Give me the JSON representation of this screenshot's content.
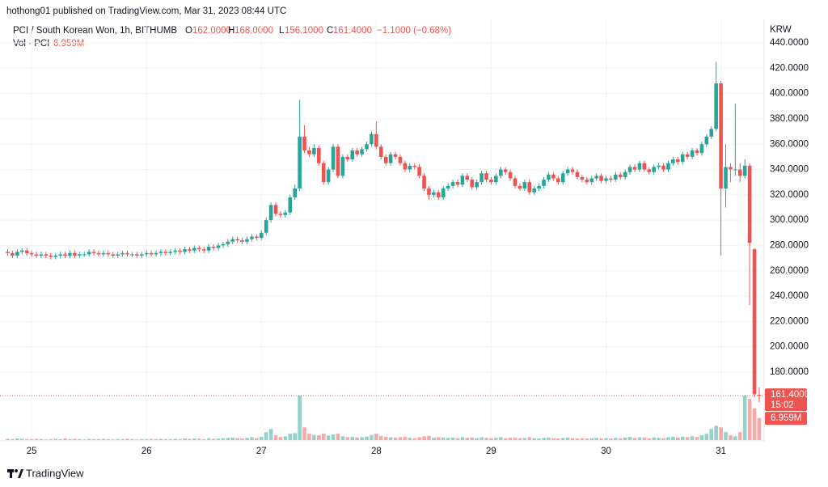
{
  "header": {
    "publisher": "hothong01 published on TradingView.com, Mar 31, 2023 08:44 UTC",
    "symbol": "PCI / South Korean Won, 1h, BITHUMB",
    "ohlc_names": [
      "O",
      "H",
      "L",
      "C"
    ],
    "change": "−1.1000 (−0.68%)",
    "volume_title": "Vol · PCI"
  },
  "chart_data": {
    "type": "candlestick",
    "categories": [
      null,
      null,
      null,
      null,
      null,
      "25",
      null,
      null,
      null,
      null,
      null,
      null,
      null,
      null,
      null,
      null,
      null,
      null,
      null,
      null,
      null,
      null,
      null,
      null,
      null,
      null,
      null,
      null,
      null,
      "26",
      null,
      null,
      null,
      null,
      null,
      null,
      null,
      null,
      null,
      null,
      null,
      null,
      null,
      null,
      null,
      null,
      null,
      null,
      null,
      null,
      null,
      null,
      null,
      "27",
      null,
      null,
      null,
      null,
      null,
      null,
      null,
      null,
      null,
      null,
      null,
      null,
      null,
      null,
      null,
      null,
      null,
      null,
      null,
      null,
      null,
      null,
      null,
      "28",
      null,
      null,
      null,
      null,
      null,
      null,
      null,
      null,
      null,
      null,
      null,
      null,
      null,
      null,
      null,
      null,
      null,
      null,
      null,
      null,
      null,
      null,
      null,
      "29",
      null,
      null,
      null,
      null,
      null,
      null,
      null,
      null,
      null,
      null,
      null,
      null,
      null,
      null,
      null,
      null,
      null,
      null,
      null,
      null,
      null,
      null,
      null,
      "30",
      null,
      null,
      null,
      null,
      null,
      null,
      null,
      null,
      null,
      null,
      null,
      null,
      null,
      null,
      null,
      null,
      null,
      null,
      null,
      null,
      null,
      null,
      null,
      "31",
      null,
      null,
      null,
      null,
      null,
      null,
      null,
      null
    ],
    "ohlc": [
      [
        275,
        277,
        272,
        274
      ],
      [
        274,
        276,
        270,
        272
      ],
      [
        272,
        277,
        270,
        275
      ],
      [
        275,
        278,
        273,
        276
      ],
      [
        276,
        278,
        272,
        274
      ],
      [
        274,
        276,
        271,
        273
      ],
      [
        273,
        275,
        270,
        272
      ],
      [
        272,
        275,
        270,
        273
      ],
      [
        273,
        275,
        270,
        272
      ],
      [
        272,
        274,
        269,
        271
      ],
      [
        271,
        274,
        269,
        272
      ],
      [
        272,
        275,
        270,
        273
      ],
      [
        273,
        275,
        270,
        272
      ],
      [
        272,
        276,
        270,
        274
      ],
      [
        274,
        276,
        270,
        272
      ],
      [
        272,
        275,
        270,
        273
      ],
      [
        273,
        275,
        271,
        273
      ],
      [
        273,
        277,
        271,
        275
      ],
      [
        275,
        277,
        272,
        274
      ],
      [
        274,
        276,
        271,
        273
      ],
      [
        273,
        276,
        271,
        274
      ],
      [
        274,
        276,
        271,
        273
      ],
      [
        273,
        275,
        270,
        272
      ],
      [
        272,
        275,
        270,
        273
      ],
      [
        273,
        276,
        271,
        274
      ],
      [
        274,
        276,
        271,
        273
      ],
      [
        273,
        275,
        271,
        273
      ],
      [
        273,
        275,
        270,
        272
      ],
      [
        272,
        275,
        270,
        273
      ],
      [
        273,
        276,
        271,
        274
      ],
      [
        274,
        276,
        271,
        273
      ],
      [
        273,
        276,
        271,
        274
      ],
      [
        274,
        277,
        272,
        275
      ],
      [
        275,
        277,
        272,
        274
      ],
      [
        274,
        277,
        272,
        275
      ],
      [
        275,
        278,
        273,
        276
      ],
      [
        276,
        278,
        273,
        275
      ],
      [
        275,
        279,
        273,
        277
      ],
      [
        277,
        279,
        274,
        276
      ],
      [
        276,
        280,
        274,
        278
      ],
      [
        278,
        280,
        275,
        277
      ],
      [
        277,
        279,
        274,
        276
      ],
      [
        276,
        281,
        274,
        279
      ],
      [
        279,
        281,
        276,
        278
      ],
      [
        278,
        282,
        276,
        280
      ],
      [
        280,
        283,
        278,
        281
      ],
      [
        281,
        285,
        279,
        283
      ],
      [
        283,
        287,
        281,
        285
      ],
      [
        285,
        287,
        282,
        284
      ],
      [
        284,
        286,
        281,
        283
      ],
      [
        283,
        287,
        281,
        285
      ],
      [
        285,
        289,
        283,
        287
      ],
      [
        287,
        289,
        284,
        286
      ],
      [
        286,
        292,
        284,
        290
      ],
      [
        290,
        302,
        288,
        300
      ],
      [
        300,
        314,
        298,
        312
      ],
      [
        312,
        314,
        303,
        305
      ],
      [
        305,
        307,
        302,
        304
      ],
      [
        304,
        308,
        302,
        306
      ],
      [
        306,
        320,
        304,
        318
      ],
      [
        318,
        328,
        316,
        325
      ],
      [
        325,
        395,
        323,
        366
      ],
      [
        366,
        375,
        353,
        355
      ],
      [
        355,
        358,
        350,
        352
      ],
      [
        352,
        360,
        350,
        357
      ],
      [
        357,
        359,
        343,
        345
      ],
      [
        345,
        347,
        328,
        330
      ],
      [
        330,
        342,
        328,
        340
      ],
      [
        340,
        360,
        338,
        358
      ],
      [
        358,
        360,
        333,
        335
      ],
      [
        335,
        352,
        333,
        350
      ],
      [
        350,
        352,
        346,
        348
      ],
      [
        348,
        357,
        346,
        355
      ],
      [
        355,
        357,
        350,
        352
      ],
      [
        352,
        358,
        350,
        356
      ],
      [
        356,
        362,
        354,
        360
      ],
      [
        360,
        370,
        358,
        368
      ],
      [
        368,
        378,
        356,
        358
      ],
      [
        358,
        360,
        348,
        350
      ],
      [
        350,
        352,
        343,
        345
      ],
      [
        345,
        354,
        343,
        352
      ],
      [
        352,
        354,
        348,
        350
      ],
      [
        350,
        352,
        343,
        345
      ],
      [
        345,
        347,
        338,
        340
      ],
      [
        340,
        345,
        338,
        343
      ],
      [
        343,
        345,
        340,
        342
      ],
      [
        342,
        344,
        333,
        335
      ],
      [
        335,
        337,
        323,
        325
      ],
      [
        325,
        327,
        316,
        320
      ],
      [
        320,
        324,
        318,
        322
      ],
      [
        322,
        324,
        316,
        318
      ],
      [
        318,
        327,
        316,
        325
      ],
      [
        325,
        329,
        323,
        327
      ],
      [
        327,
        332,
        325,
        330
      ],
      [
        330,
        332,
        326,
        328
      ],
      [
        328,
        337,
        326,
        335
      ],
      [
        335,
        337,
        330,
        332
      ],
      [
        332,
        334,
        324,
        326
      ],
      [
        326,
        332,
        324,
        330
      ],
      [
        330,
        339,
        328,
        337
      ],
      [
        337,
        339,
        330,
        332
      ],
      [
        332,
        334,
        328,
        330
      ],
      [
        330,
        337,
        328,
        335
      ],
      [
        335,
        342,
        333,
        340
      ],
      [
        340,
        342,
        336,
        338
      ],
      [
        338,
        340,
        331,
        333
      ],
      [
        333,
        335,
        325,
        327
      ],
      [
        327,
        329,
        323,
        325
      ],
      [
        325,
        332,
        323,
        330
      ],
      [
        330,
        332,
        320,
        322
      ],
      [
        322,
        327,
        320,
        325
      ],
      [
        325,
        329,
        323,
        327
      ],
      [
        327,
        334,
        325,
        332
      ],
      [
        332,
        338,
        330,
        336
      ],
      [
        336,
        338,
        331,
        333
      ],
      [
        333,
        335,
        328,
        330
      ],
      [
        330,
        339,
        328,
        337
      ],
      [
        337,
        342,
        335,
        340
      ],
      [
        340,
        342,
        336,
        338
      ],
      [
        338,
        340,
        332,
        334
      ],
      [
        334,
        336,
        330,
        332
      ],
      [
        332,
        334,
        328,
        330
      ],
      [
        330,
        335,
        328,
        333
      ],
      [
        333,
        337,
        331,
        335
      ],
      [
        335,
        337,
        329,
        331
      ],
      [
        331,
        335,
        329,
        333
      ],
      [
        333,
        335,
        330,
        332
      ],
      [
        332,
        338,
        330,
        336
      ],
      [
        336,
        338,
        332,
        334
      ],
      [
        334,
        340,
        332,
        338
      ],
      [
        338,
        344,
        336,
        342
      ],
      [
        342,
        344,
        338,
        340
      ],
      [
        340,
        347,
        338,
        345
      ],
      [
        345,
        347,
        338,
        340
      ],
      [
        340,
        342,
        336,
        338
      ],
      [
        338,
        344,
        336,
        342
      ],
      [
        342,
        345,
        340,
        343
      ],
      [
        343,
        345,
        338,
        340
      ],
      [
        340,
        347,
        338,
        345
      ],
      [
        345,
        350,
        343,
        348
      ],
      [
        348,
        350,
        344,
        346
      ],
      [
        346,
        354,
        344,
        352
      ],
      [
        352,
        354,
        348,
        350
      ],
      [
        350,
        357,
        348,
        355
      ],
      [
        355,
        357,
        351,
        353
      ],
      [
        353,
        362,
        351,
        360
      ],
      [
        360,
        368,
        358,
        366
      ],
      [
        366,
        374,
        364,
        372
      ],
      [
        372,
        425,
        370,
        408
      ],
      [
        408,
        410,
        272,
        325
      ],
      [
        325,
        360,
        310,
        342
      ],
      [
        342,
        345,
        330,
        340
      ],
      [
        340,
        392,
        335,
        340
      ],
      [
        340,
        345,
        330,
        335
      ],
      [
        335,
        348,
        333,
        343
      ],
      [
        343,
        345,
        233,
        282
      ],
      [
        277,
        278,
        160,
        162.5
      ],
      [
        162,
        168,
        156.1,
        161.4
      ]
    ],
    "volume": [
      0.4,
      0.3,
      0.5,
      0.4,
      0.3,
      0.3,
      0.4,
      0.3,
      0.2,
      0.3,
      0.4,
      0.3,
      0.5,
      0.3,
      0.4,
      0.3,
      0.2,
      0.4,
      0.3,
      0.3,
      0.4,
      0.3,
      0.2,
      0.3,
      0.3,
      0.4,
      0.3,
      0.2,
      0.3,
      0.3,
      0.4,
      0.3,
      0.4,
      0.3,
      0.3,
      0.4,
      0.3,
      0.5,
      0.4,
      0.5,
      0.4,
      0.3,
      0.6,
      0.4,
      0.5,
      0.6,
      0.7,
      0.8,
      0.6,
      0.5,
      0.7,
      0.9,
      0.6,
      1.0,
      2.5,
      3.5,
      1.5,
      1.0,
      1.2,
      2.0,
      2.2,
      14,
      4.0,
      2.0,
      1.6,
      1.5,
      2.0,
      1.4,
      1.8,
      2.0,
      1.2,
      0.9,
      1.0,
      0.8,
      0.9,
      1.1,
      1.6,
      2.0,
      1.3,
      1.0,
      0.9,
      0.8,
      0.9,
      1.0,
      0.7,
      0.6,
      0.9,
      1.2,
      1.3,
      0.8,
      0.9,
      0.8,
      0.7,
      0.8,
      0.6,
      0.9,
      0.7,
      0.8,
      0.6,
      0.9,
      0.7,
      0.6,
      0.7,
      0.9,
      0.6,
      0.7,
      0.8,
      0.6,
      0.7,
      0.9,
      0.6,
      0.5,
      0.7,
      0.8,
      0.6,
      0.5,
      0.7,
      0.8,
      0.6,
      0.5,
      0.6,
      0.5,
      0.6,
      0.7,
      0.5,
      0.6,
      0.5,
      0.7,
      0.6,
      0.8,
      1.0,
      0.7,
      0.9,
      0.8,
      0.6,
      0.8,
      0.7,
      0.6,
      0.9,
      1.0,
      0.8,
      1.1,
      0.9,
      1.2,
      1.0,
      1.5,
      2.0,
      3.5,
      4.5,
      4.0,
      2.5,
      1.5,
      1.2,
      2.5,
      14,
      13,
      10,
      6.959
    ],
    "last_ohlc_labels": [
      "162.0000",
      "168.0000",
      "156.1000",
      "161.4000"
    ],
    "last_volume_label": "6.959M",
    "last_price_label": "161.4000",
    "countdown": "15:02",
    "currency": "KRW",
    "up_color": "#26a69a",
    "down_color": "#ef5350",
    "ylim": [
      126.3,
      454.7
    ],
    "yticks": [
      {
        "value": 180,
        "label": "180.0000"
      },
      {
        "value": 200,
        "label": "200.0000"
      },
      {
        "value": 220,
        "label": "220.0000"
      },
      {
        "value": 240,
        "label": "240.0000"
      },
      {
        "value": 260,
        "label": "260.0000"
      },
      {
        "value": 280,
        "label": "280.0000"
      },
      {
        "value": 300,
        "label": "300.0000"
      },
      {
        "value": 320,
        "label": "320.0000"
      },
      {
        "value": 340,
        "label": "340.0000"
      },
      {
        "value": 360,
        "label": "360.0000"
      },
      {
        "value": 380,
        "label": "380.0000"
      },
      {
        "value": 400,
        "label": "400.0000"
      },
      {
        "value": 420,
        "label": "420.0000"
      },
      {
        "value": 440,
        "label": "440.0000"
      }
    ],
    "grid": true
  },
  "footer": {
    "brand": "TradingView"
  }
}
